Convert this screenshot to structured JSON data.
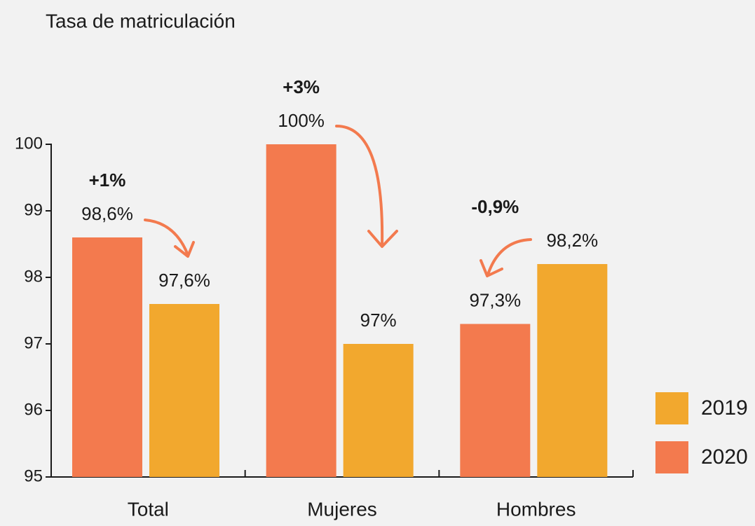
{
  "chart_data": {
    "type": "bar",
    "title": "Tasa de matriculación",
    "categories": [
      "Total",
      "Mujeres",
      "Hombres"
    ],
    "series": [
      {
        "name": "2019",
        "color": "#f2a82e",
        "values": [
          97.6,
          97,
          98.2
        ],
        "value_labels": [
          "97,6%",
          "97%",
          "98,2%"
        ]
      },
      {
        "name": "2020",
        "color": "#f37a4e",
        "values": [
          98.6,
          100,
          97.3
        ],
        "value_labels": [
          "98,6%",
          "100%",
          "97,3%"
        ]
      }
    ],
    "annotations": [
      "+1%",
      "+3%",
      "-0,9%"
    ],
    "ylim": [
      95,
      100
    ],
    "yticks": [
      95,
      96,
      97,
      98,
      99,
      100
    ],
    "grid": false
  }
}
